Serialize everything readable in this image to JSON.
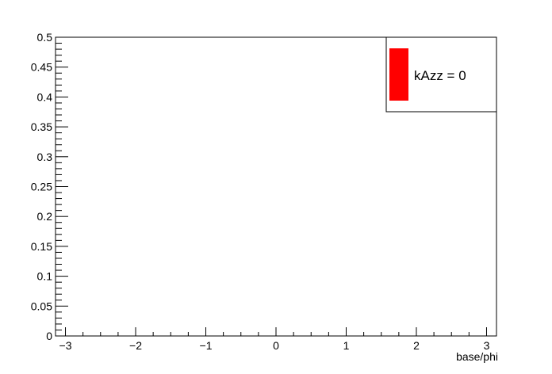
{
  "chart_data": {
    "type": "bar",
    "title": "",
    "xlabel": "base/phi",
    "ylabel": "",
    "xlim": [
      -3.1416,
      3.1416
    ],
    "ylim": [
      0,
      0.5
    ],
    "x_ticks": [
      -3,
      -2,
      -1,
      0,
      1,
      2,
      3
    ],
    "x_tick_labels": [
      "−3",
      "−2",
      "−1",
      "0",
      "1",
      "2",
      "3"
    ],
    "y_ticks": [
      0,
      0.05,
      0.1,
      0.15,
      0.2,
      0.25,
      0.3,
      0.35,
      0.4,
      0.45,
      0.5
    ],
    "y_tick_labels": [
      "0",
      "0.05",
      "0.1",
      "0.15",
      "0.2",
      "0.25",
      "0.3",
      "0.35",
      "0.4",
      "0.45",
      "0.5"
    ],
    "grid": false,
    "legend_position": "top-right",
    "series": [
      {
        "name": "kAzz = 0",
        "color": "#ff0000",
        "values": []
      }
    ]
  }
}
